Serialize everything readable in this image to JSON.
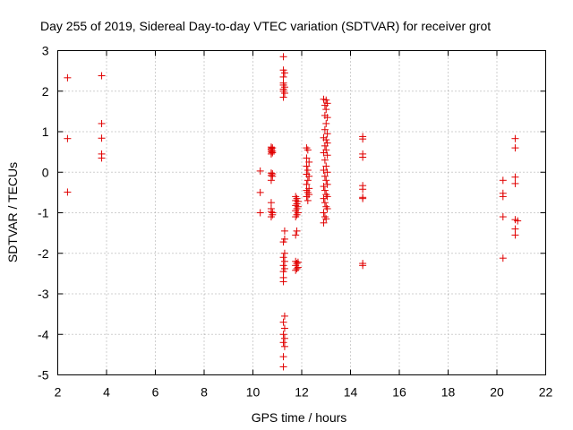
{
  "chart_data": {
    "type": "scatter",
    "title": "Day 255 of 2019, Sidereal Day-to-day VTEC variation (SDTVAR) for receiver grot",
    "xlabel": "GPS time / hours",
    "ylabel": "SDTVAR / TECUs",
    "xlim": [
      2,
      22
    ],
    "ylim": [
      -5,
      3
    ],
    "xticks": [
      "2",
      "4",
      "6",
      "8",
      "10",
      "12",
      "14",
      "16",
      "18",
      "20",
      "22"
    ],
    "yticks": [
      "3",
      "2",
      "1",
      "0",
      "-1",
      "-2",
      "-3",
      "-4",
      "-5"
    ],
    "grid": true,
    "marker": "plus",
    "color": "#e00000",
    "series": [
      {
        "name": "SDTVAR",
        "points": [
          [
            2.4,
            2.33
          ],
          [
            2.4,
            0.83
          ],
          [
            2.4,
            -0.49
          ],
          [
            3.8,
            2.38
          ],
          [
            3.8,
            1.2
          ],
          [
            3.8,
            0.84
          ],
          [
            3.8,
            0.45
          ],
          [
            3.8,
            0.35
          ],
          [
            10.3,
            0.03
          ],
          [
            10.3,
            -0.5
          ],
          [
            10.3,
            -1.0
          ],
          [
            10.75,
            0.62
          ],
          [
            10.75,
            0.58
          ],
          [
            10.75,
            0.55
          ],
          [
            10.75,
            0.5
          ],
          [
            10.75,
            0.45
          ],
          [
            10.8,
            0.6
          ],
          [
            10.8,
            0.52
          ],
          [
            10.8,
            0.48
          ],
          [
            10.75,
            -0.02
          ],
          [
            10.75,
            -0.08
          ],
          [
            10.8,
            -0.04
          ],
          [
            10.8,
            -0.1
          ],
          [
            10.75,
            -0.2
          ],
          [
            10.75,
            -0.75
          ],
          [
            10.75,
            -0.9
          ],
          [
            10.75,
            -0.97
          ],
          [
            10.8,
            -1.0
          ],
          [
            10.8,
            -1.05
          ],
          [
            10.75,
            -1.1
          ],
          [
            11.25,
            2.85
          ],
          [
            11.25,
            2.52
          ],
          [
            11.3,
            2.45
          ],
          [
            11.25,
            2.35
          ],
          [
            11.25,
            2.2
          ],
          [
            11.25,
            2.15
          ],
          [
            11.3,
            2.1
          ],
          [
            11.25,
            2.05
          ],
          [
            11.25,
            2.0
          ],
          [
            11.3,
            1.95
          ],
          [
            11.25,
            1.85
          ],
          [
            11.3,
            -1.45
          ],
          [
            11.3,
            -1.65
          ],
          [
            11.25,
            -1.72
          ],
          [
            11.3,
            -2.0
          ],
          [
            11.25,
            -2.1
          ],
          [
            11.3,
            -2.2
          ],
          [
            11.25,
            -2.3
          ],
          [
            11.3,
            -2.38
          ],
          [
            11.25,
            -2.45
          ],
          [
            11.25,
            -2.6
          ],
          [
            11.25,
            -2.7
          ],
          [
            11.3,
            -3.55
          ],
          [
            11.25,
            -3.7
          ],
          [
            11.3,
            -3.85
          ],
          [
            11.25,
            -4.0
          ],
          [
            11.3,
            -4.1
          ],
          [
            11.25,
            -4.2
          ],
          [
            11.3,
            -4.3
          ],
          [
            11.25,
            -4.55
          ],
          [
            11.25,
            -4.8
          ],
          [
            11.75,
            -0.6
          ],
          [
            11.8,
            -0.65
          ],
          [
            11.75,
            -0.7
          ],
          [
            11.85,
            -0.72
          ],
          [
            11.8,
            -0.78
          ],
          [
            11.75,
            -0.82
          ],
          [
            11.85,
            -0.85
          ],
          [
            11.8,
            -0.9
          ],
          [
            11.75,
            -0.95
          ],
          [
            11.85,
            -1.0
          ],
          [
            11.8,
            -1.05
          ],
          [
            11.75,
            -1.1
          ],
          [
            11.8,
            -1.45
          ],
          [
            11.75,
            -1.55
          ],
          [
            11.75,
            -2.2
          ],
          [
            11.85,
            -2.22
          ],
          [
            11.8,
            -2.25
          ],
          [
            11.75,
            -2.3
          ],
          [
            11.85,
            -2.35
          ],
          [
            11.8,
            -2.38
          ],
          [
            11.75,
            -2.42
          ],
          [
            12.2,
            0.6
          ],
          [
            12.25,
            0.55
          ],
          [
            12.2,
            0.35
          ],
          [
            12.3,
            0.25
          ],
          [
            12.2,
            0.15
          ],
          [
            12.25,
            0.05
          ],
          [
            12.2,
            -0.05
          ],
          [
            12.3,
            -0.1
          ],
          [
            12.25,
            -0.2
          ],
          [
            12.2,
            -0.3
          ],
          [
            12.3,
            -0.4
          ],
          [
            12.2,
            -0.45
          ],
          [
            12.25,
            -0.5
          ],
          [
            12.3,
            -0.55
          ],
          [
            12.2,
            -0.6
          ],
          [
            12.25,
            -0.7
          ],
          [
            12.9,
            1.8
          ],
          [
            12.95,
            1.65
          ],
          [
            13.0,
            1.78
          ],
          [
            13.05,
            1.7
          ],
          [
            13.0,
            1.55
          ],
          [
            12.95,
            1.4
          ],
          [
            13.05,
            1.35
          ],
          [
            13.0,
            1.2
          ],
          [
            12.95,
            1.05
          ],
          [
            13.05,
            0.95
          ],
          [
            12.9,
            0.85
          ],
          [
            13.0,
            0.8
          ],
          [
            13.05,
            0.72
          ],
          [
            12.95,
            0.65
          ],
          [
            13.0,
            0.55
          ],
          [
            12.9,
            0.48
          ],
          [
            13.05,
            0.42
          ],
          [
            12.95,
            0.3
          ],
          [
            13.0,
            0.15
          ],
          [
            12.9,
            0.05
          ],
          [
            13.05,
            0.0
          ],
          [
            12.95,
            -0.1
          ],
          [
            13.0,
            -0.2
          ],
          [
            13.05,
            -0.3
          ],
          [
            12.9,
            -0.35
          ],
          [
            12.95,
            -0.45
          ],
          [
            13.0,
            -0.55
          ],
          [
            13.05,
            -0.6
          ],
          [
            12.9,
            -0.65
          ],
          [
            12.95,
            -0.75
          ],
          [
            13.0,
            -0.85
          ],
          [
            13.05,
            -0.9
          ],
          [
            12.9,
            -1.0
          ],
          [
            12.95,
            -1.1
          ],
          [
            13.0,
            -1.15
          ],
          [
            12.9,
            -1.25
          ],
          [
            14.5,
            0.88
          ],
          [
            14.5,
            0.82
          ],
          [
            14.5,
            0.45
          ],
          [
            14.5,
            0.37
          ],
          [
            14.5,
            -0.33
          ],
          [
            14.5,
            -0.42
          ],
          [
            14.5,
            -0.62
          ],
          [
            14.5,
            -0.65
          ],
          [
            14.5,
            -2.25
          ],
          [
            14.5,
            -2.3
          ],
          [
            20.25,
            -0.2
          ],
          [
            20.25,
            -0.52
          ],
          [
            20.25,
            -0.6
          ],
          [
            20.25,
            -1.1
          ],
          [
            20.25,
            -2.12
          ],
          [
            20.75,
            0.83
          ],
          [
            20.75,
            0.6
          ],
          [
            20.75,
            -0.12
          ],
          [
            20.75,
            -0.28
          ],
          [
            20.75,
            -1.17
          ],
          [
            20.85,
            -1.2
          ],
          [
            20.75,
            -1.4
          ],
          [
            20.75,
            -1.55
          ]
        ]
      }
    ]
  }
}
